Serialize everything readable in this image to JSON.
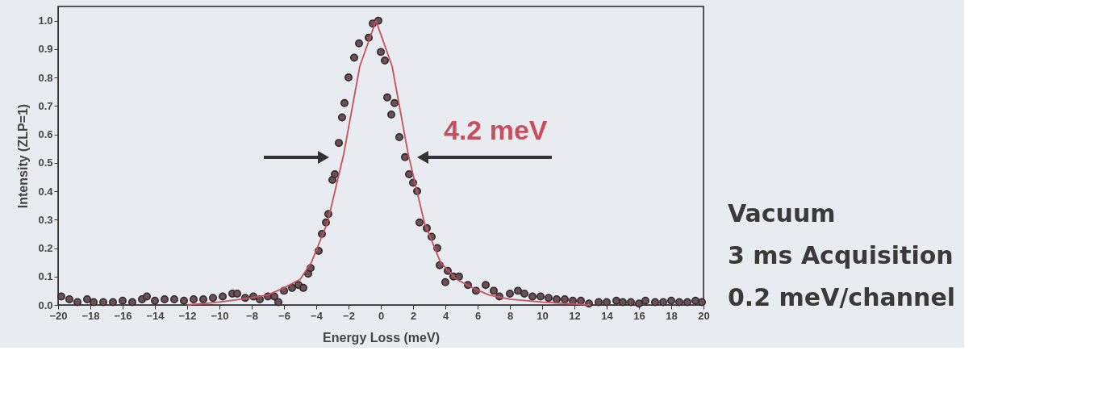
{
  "chart_data": {
    "type": "scatter",
    "xlabel": "Energy Loss (meV)",
    "ylabel": "Intensity (ZLP=1)",
    "xlim": [
      -20,
      20
    ],
    "ylim": [
      0,
      1.05
    ],
    "xticks": [
      -20,
      -18,
      -16,
      -14,
      -12,
      -10,
      -8,
      -6,
      -4,
      -2,
      0,
      2,
      4,
      6,
      8,
      10,
      12,
      14,
      16,
      18,
      20
    ],
    "yticks": [
      {
        "value": 0,
        "label": "0.0"
      },
      0.1,
      0.2,
      0.3,
      0.4,
      0.5,
      0.6,
      0.7,
      0.8,
      0.9,
      {
        "value": 1,
        "label": "1.0"
      }
    ],
    "grid": false,
    "marker": "circle",
    "annotations": [
      "4.2 meV",
      "Vacuum",
      "3 ms Acquisition",
      "0.2 meV/channel"
    ],
    "series": [
      {
        "color": "#6e4f55",
        "x": [
          -19.8,
          -19.3,
          -18.8,
          -18.2,
          -17.8,
          -17.2,
          -16.6,
          -16.0,
          -15.4,
          -14.8,
          -14.5,
          -14.0,
          -13.4,
          -12.8,
          -12.2,
          -11.6,
          -11.0,
          -10.4,
          -9.8,
          -9.2,
          -8.9,
          -8.4,
          -7.9,
          -7.5,
          -7.0,
          -6.6,
          -6.35,
          -6.0,
          -5.5,
          -5.1,
          -4.8,
          -4.5,
          -4.35,
          -3.85,
          -3.65,
          -3.4,
          -3.25,
          -3.0,
          -2.85,
          -2.6,
          -2.4,
          -2.25,
          -2.0,
          -1.65,
          -1.35,
          -0.75,
          -0.5,
          -0.15,
          0.0,
          0.25,
          0.4,
          0.65,
          0.85,
          1.15,
          1.5,
          1.75,
          2.0,
          2.25,
          2.4,
          2.85,
          3.15,
          3.5,
          3.65,
          4.0,
          4.15,
          4.5,
          4.85,
          5.4,
          5.9,
          6.5,
          7.0,
          7.35,
          8.0,
          8.5,
          8.9,
          9.4,
          9.9,
          10.4,
          10.9,
          11.4,
          11.9,
          12.4,
          12.9,
          13.5,
          14.0,
          14.6,
          15.0,
          15.5,
          16.0,
          16.4,
          17.0,
          17.5,
          18.0,
          18.5,
          19.0,
          19.5,
          19.9
        ],
        "values": [
          0.03,
          0.02,
          0.01,
          0.02,
          0.01,
          0.01,
          0.01,
          0.015,
          0.01,
          0.02,
          0.03,
          0.015,
          0.02,
          0.02,
          0.015,
          0.02,
          0.02,
          0.025,
          0.03,
          0.04,
          0.04,
          0.025,
          0.03,
          0.02,
          0.03,
          0.03,
          0.01,
          0.05,
          0.06,
          0.07,
          0.06,
          0.11,
          0.13,
          0.19,
          0.25,
          0.29,
          0.32,
          0.44,
          0.46,
          0.57,
          0.66,
          0.71,
          0.8,
          0.87,
          0.92,
          0.94,
          0.99,
          1.0,
          0.89,
          0.86,
          0.73,
          0.67,
          0.71,
          0.59,
          0.52,
          0.46,
          0.43,
          0.4,
          0.29,
          0.27,
          0.24,
          0.2,
          0.14,
          0.08,
          0.12,
          0.1,
          0.1,
          0.07,
          0.05,
          0.07,
          0.05,
          0.03,
          0.04,
          0.05,
          0.04,
          0.03,
          0.03,
          0.025,
          0.02,
          0.02,
          0.015,
          0.015,
          0.005,
          0.01,
          0.01,
          0.015,
          0.01,
          0.01,
          0.005,
          0.015,
          0.01,
          0.01,
          0.015,
          0.01,
          0.01,
          0.015,
          0.01
        ]
      },
      {
        "type": "line",
        "marker": "none",
        "line_style": "solid",
        "color": "#c8505e",
        "x": [
          -12,
          -10,
          -8,
          -7,
          -6,
          -5,
          -4.3,
          -3.3,
          -2.3,
          -1.3,
          -0.3,
          0.7,
          1.7,
          2.7,
          3.7,
          4.7,
          5.7,
          6.7,
          8,
          10,
          13
        ],
        "values": [
          0,
          0.01,
          0.025,
          0.035,
          0.06,
          0.09,
          0.15,
          0.29,
          0.53,
          0.84,
          1.0,
          0.84,
          0.53,
          0.29,
          0.15,
          0.09,
          0.06,
          0.035,
          0.02,
          0.01,
          0
        ]
      }
    ]
  }
}
